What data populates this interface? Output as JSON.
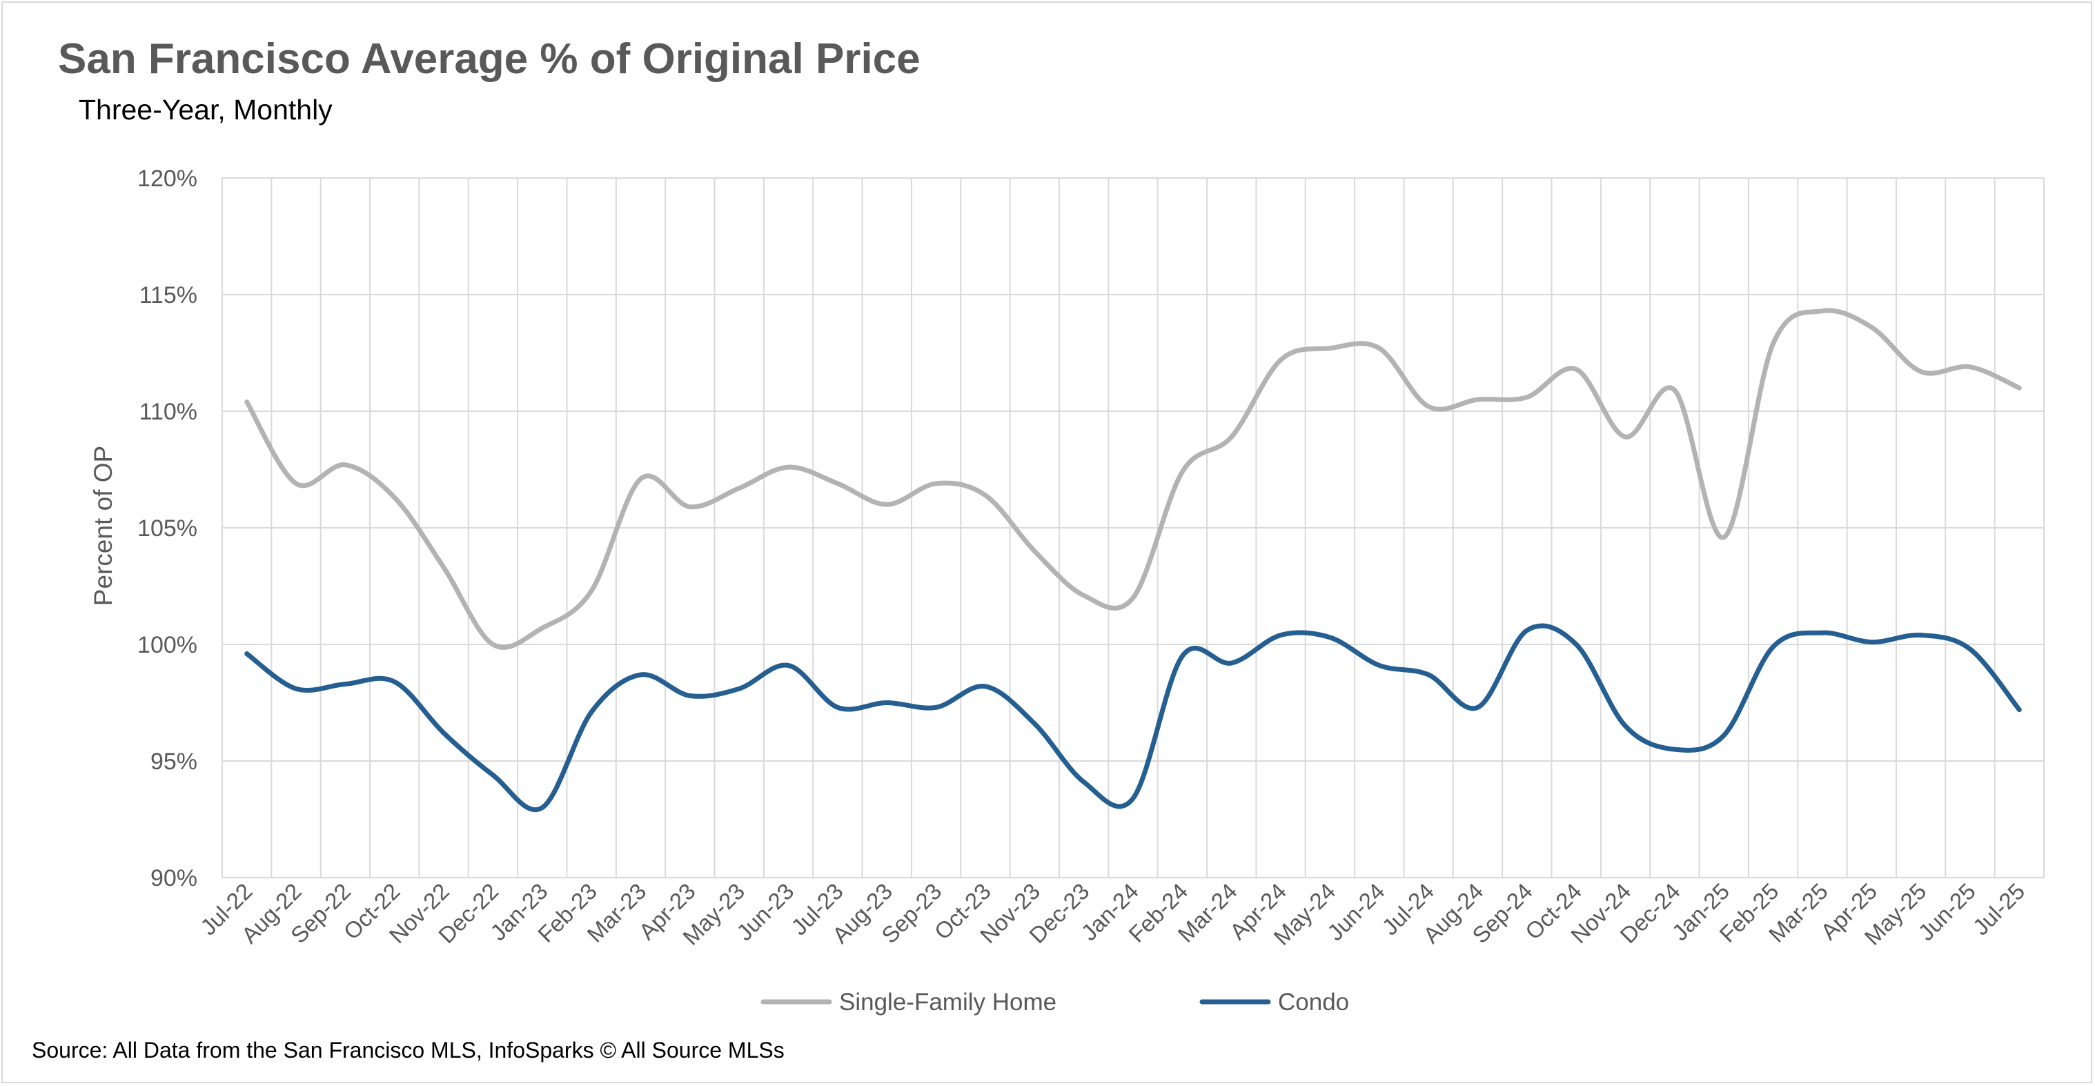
{
  "title": "San Francisco Average % of Original Price",
  "subtitle": "Three-Year, Monthly",
  "source": "Source: All Data from the San Francisco MLS, InfoSparks © All Source MLSs",
  "chart_data": {
    "type": "line",
    "title": "San Francisco Average % of Original Price",
    "subtitle": "Three-Year, Monthly",
    "ylabel": "Percent of OP",
    "xlabel": "",
    "ylim": [
      90,
      120
    ],
    "y_tick_step": 5,
    "y_tick_labels": [
      "90%",
      "95%",
      "100%",
      "105%",
      "110%",
      "115%",
      "120%"
    ],
    "grid": true,
    "legend_position": "bottom",
    "categories": [
      "Jul-22",
      "Aug-22",
      "Sep-22",
      "Oct-22",
      "Nov-22",
      "Dec-22",
      "Jan-23",
      "Feb-23",
      "Mar-23",
      "Apr-23",
      "May-23",
      "Jun-23",
      "Jul-23",
      "Aug-23",
      "Sep-23",
      "Oct-23",
      "Nov-23",
      "Dec-23",
      "Jan-24",
      "Feb-24",
      "Mar-24",
      "Apr-24",
      "May-24",
      "Jun-24",
      "Jul-24",
      "Aug-24",
      "Sep-24",
      "Oct-24",
      "Nov-24",
      "Dec-24",
      "Jan-25",
      "Feb-25",
      "Mar-25",
      "Apr-25",
      "May-25",
      "Jun-25",
      "Jul-25"
    ],
    "series": [
      {
        "name": "Single-Family Home",
        "color": "#b3b3b3",
        "values": [
          110.4,
          106.9,
          107.7,
          106.3,
          103.3,
          100.0,
          100.7,
          102.3,
          107.1,
          105.9,
          106.7,
          107.6,
          106.9,
          106.0,
          106.9,
          106.4,
          104.0,
          102.1,
          102.0,
          107.4,
          108.9,
          112.2,
          112.7,
          112.7,
          110.2,
          110.5,
          110.6,
          111.8,
          108.9,
          110.9,
          104.6,
          112.9,
          114.3,
          113.6,
          111.7,
          111.9,
          111.0
        ]
      },
      {
        "name": "Condo",
        "color": "#255e91",
        "values": [
          99.6,
          98.1,
          98.3,
          98.4,
          96.2,
          94.4,
          93.0,
          97.1,
          98.7,
          97.8,
          98.1,
          99.1,
          97.3,
          97.5,
          97.3,
          98.2,
          96.6,
          94.1,
          93.4,
          99.5,
          99.2,
          100.4,
          100.3,
          99.1,
          98.7,
          97.3,
          100.6,
          100.0,
          96.5,
          95.5,
          96.1,
          99.9,
          100.5,
          100.1,
          100.4,
          99.8,
          97.2
        ]
      }
    ]
  }
}
